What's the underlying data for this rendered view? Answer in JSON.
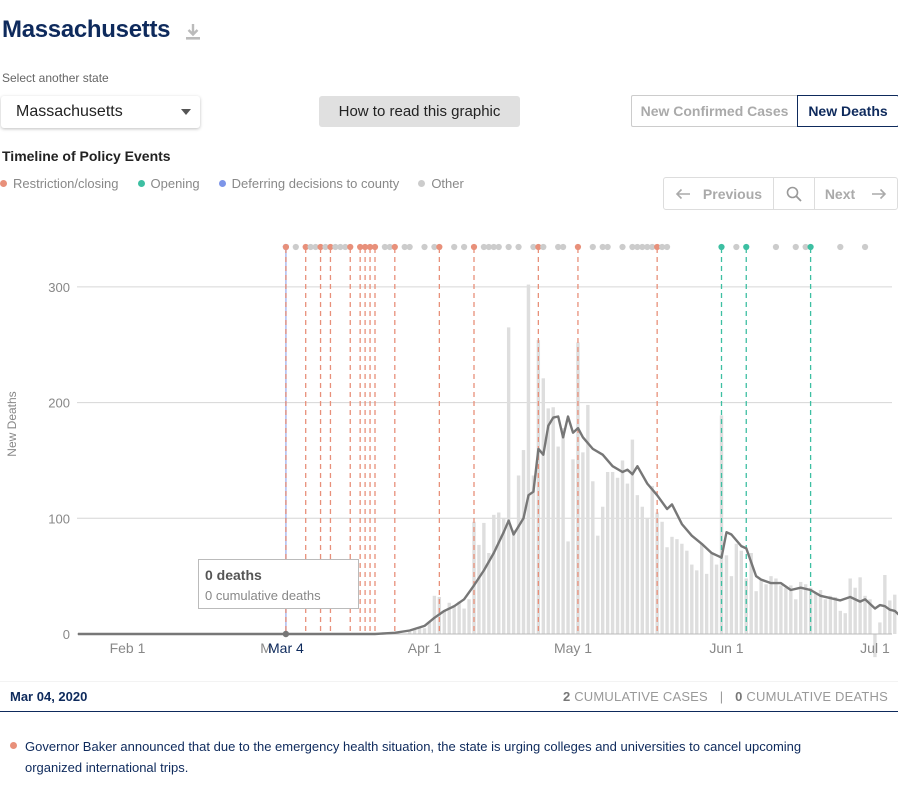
{
  "header": {
    "state_name": "Massachusetts",
    "download_icon": "download-icon"
  },
  "selector": {
    "label": "Select another state",
    "value": "Massachusetts"
  },
  "howto": {
    "label": "How to read this graphic"
  },
  "toggle": {
    "cases_label": "New Confirmed Cases",
    "deaths_label": "New Deaths",
    "selected": "New Deaths"
  },
  "timeline": {
    "title": "Timeline of Policy Events",
    "legend": [
      {
        "label": "Restriction/closing",
        "color": "#e8907a"
      },
      {
        "label": "Opening",
        "color": "#3dbfa2"
      },
      {
        "label": "Deferring decisions to county",
        "color": "#7d95e8"
      },
      {
        "label": "Other",
        "color": "#cccccc"
      }
    ],
    "nav": {
      "prev_label": "Previous",
      "next_label": "Next",
      "search_icon": "search-icon"
    }
  },
  "chart_data": {
    "type": "bar",
    "ylabel": "New Deaths",
    "ylim": [
      0,
      340
    ],
    "yticks": [
      0,
      100,
      200,
      300
    ],
    "x_start": "2020-01-22",
    "xticks": [
      {
        "label": "Feb 1",
        "day": 10
      },
      {
        "label": "M",
        "day": 38
      },
      {
        "label": "Mar 4",
        "day": 42,
        "highlight": true
      },
      {
        "label": "Apr 1",
        "day": 70
      },
      {
        "label": "May 1",
        "day": 100
      },
      {
        "label": "Jun 1",
        "day": 131
      },
      {
        "label": "Jul 1",
        "day": 161
      }
    ],
    "bars": [
      {
        "day": 67,
        "value": 2
      },
      {
        "day": 68,
        "value": 4
      },
      {
        "day": 69,
        "value": 6
      },
      {
        "day": 70,
        "value": 5
      },
      {
        "day": 71,
        "value": 10
      },
      {
        "day": 72,
        "value": 33
      },
      {
        "day": 73,
        "value": 32
      },
      {
        "day": 74,
        "value": 20
      },
      {
        "day": 75,
        "value": 27
      },
      {
        "day": 76,
        "value": 25
      },
      {
        "day": 77,
        "value": 28
      },
      {
        "day": 78,
        "value": 22
      },
      {
        "day": 79,
        "value": 30
      },
      {
        "day": 80,
        "value": 97
      },
      {
        "day": 81,
        "value": 77
      },
      {
        "day": 82,
        "value": 96
      },
      {
        "day": 83,
        "value": 70
      },
      {
        "day": 84,
        "value": 103
      },
      {
        "day": 85,
        "value": 105
      },
      {
        "day": 86,
        "value": 100
      },
      {
        "day": 87,
        "value": 265
      },
      {
        "day": 88,
        "value": 90
      },
      {
        "day": 89,
        "value": 137
      },
      {
        "day": 90,
        "value": 159
      },
      {
        "day": 91,
        "value": 302
      },
      {
        "day": 92,
        "value": 137
      },
      {
        "day": 93,
        "value": 254
      },
      {
        "day": 94,
        "value": 221
      },
      {
        "day": 95,
        "value": 195
      },
      {
        "day": 96,
        "value": 196
      },
      {
        "day": 97,
        "value": 162
      },
      {
        "day": 98,
        "value": 178
      },
      {
        "day": 99,
        "value": 80
      },
      {
        "day": 100,
        "value": 151
      },
      {
        "day": 101,
        "value": 252
      },
      {
        "day": 102,
        "value": 157
      },
      {
        "day": 103,
        "value": 198
      },
      {
        "day": 104,
        "value": 132
      },
      {
        "day": 105,
        "value": 85
      },
      {
        "day": 106,
        "value": 110
      },
      {
        "day": 107,
        "value": 140
      },
      {
        "day": 108,
        "value": 140
      },
      {
        "day": 109,
        "value": 135
      },
      {
        "day": 110,
        "value": 150
      },
      {
        "day": 111,
        "value": 130
      },
      {
        "day": 112,
        "value": 168
      },
      {
        "day": 113,
        "value": 120
      },
      {
        "day": 114,
        "value": 110
      },
      {
        "day": 115,
        "value": 100
      },
      {
        "day": 116,
        "value": 128
      },
      {
        "day": 117,
        "value": 105
      },
      {
        "day": 118,
        "value": 97
      },
      {
        "day": 119,
        "value": 75
      },
      {
        "day": 120,
        "value": 84
      },
      {
        "day": 121,
        "value": 82
      },
      {
        "day": 122,
        "value": 78
      },
      {
        "day": 123,
        "value": 72
      },
      {
        "day": 124,
        "value": 60
      },
      {
        "day": 125,
        "value": 55
      },
      {
        "day": 126,
        "value": 78
      },
      {
        "day": 127,
        "value": 52
      },
      {
        "day": 128,
        "value": 70
      },
      {
        "day": 129,
        "value": 60
      },
      {
        "day": 130,
        "value": 189
      },
      {
        "day": 131,
        "value": 68
      },
      {
        "day": 132,
        "value": 50
      },
      {
        "day": 133,
        "value": 78
      },
      {
        "day": 134,
        "value": 72
      },
      {
        "day": 135,
        "value": 48
      },
      {
        "day": 136,
        "value": 70
      },
      {
        "day": 137,
        "value": 37
      },
      {
        "day": 138,
        "value": 47
      },
      {
        "day": 139,
        "value": 43
      },
      {
        "day": 140,
        "value": 50
      },
      {
        "day": 141,
        "value": 48
      },
      {
        "day": 142,
        "value": 42
      },
      {
        "day": 143,
        "value": 40
      },
      {
        "day": 144,
        "value": 42
      },
      {
        "day": 145,
        "value": 30
      },
      {
        "day": 146,
        "value": 45
      },
      {
        "day": 147,
        "value": 43
      },
      {
        "day": 148,
        "value": 40
      },
      {
        "day": 149,
        "value": 36
      },
      {
        "day": 150,
        "value": 38
      },
      {
        "day": 151,
        "value": 30
      },
      {
        "day": 152,
        "value": 33
      },
      {
        "day": 153,
        "value": 32
      },
      {
        "day": 154,
        "value": 20
      },
      {
        "day": 155,
        "value": 18
      },
      {
        "day": 156,
        "value": 48
      },
      {
        "day": 157,
        "value": 40
      },
      {
        "day": 158,
        "value": 49
      },
      {
        "day": 159,
        "value": 33
      },
      {
        "day": 160,
        "value": 30
      },
      {
        "day": 161,
        "value": -20
      },
      {
        "day": 162,
        "value": 10
      },
      {
        "day": 163,
        "value": 51
      },
      {
        "day": 164,
        "value": 29
      },
      {
        "day": 165,
        "value": 34
      },
      {
        "day": 166,
        "value": 20
      },
      {
        "day": 167,
        "value": 18
      },
      {
        "day": 168,
        "value": 21
      },
      {
        "day": 169,
        "value": 27
      },
      {
        "day": 170,
        "value": 26
      }
    ],
    "average": [
      {
        "day": 0,
        "value": 0
      },
      {
        "day": 60,
        "value": 0
      },
      {
        "day": 64,
        "value": 1
      },
      {
        "day": 67,
        "value": 3
      },
      {
        "day": 70,
        "value": 7
      },
      {
        "day": 72,
        "value": 14
      },
      {
        "day": 74,
        "value": 20
      },
      {
        "day": 76,
        "value": 24
      },
      {
        "day": 78,
        "value": 30
      },
      {
        "day": 80,
        "value": 42
      },
      {
        "day": 82,
        "value": 55
      },
      {
        "day": 84,
        "value": 70
      },
      {
        "day": 86,
        "value": 88
      },
      {
        "day": 87,
        "value": 98
      },
      {
        "day": 88,
        "value": 86
      },
      {
        "day": 90,
        "value": 100
      },
      {
        "day": 91,
        "value": 120
      },
      {
        "day": 92,
        "value": 123
      },
      {
        "day": 93,
        "value": 160
      },
      {
        "day": 94,
        "value": 155
      },
      {
        "day": 95,
        "value": 180
      },
      {
        "day": 96,
        "value": 187
      },
      {
        "day": 97,
        "value": 188
      },
      {
        "day": 98,
        "value": 170
      },
      {
        "day": 99,
        "value": 188
      },
      {
        "day": 100,
        "value": 174
      },
      {
        "day": 101,
        "value": 178
      },
      {
        "day": 102,
        "value": 170
      },
      {
        "day": 104,
        "value": 160
      },
      {
        "day": 106,
        "value": 155
      },
      {
        "day": 108,
        "value": 145
      },
      {
        "day": 110,
        "value": 140
      },
      {
        "day": 111,
        "value": 142
      },
      {
        "day": 112,
        "value": 138
      },
      {
        "day": 113,
        "value": 145
      },
      {
        "day": 115,
        "value": 130
      },
      {
        "day": 117,
        "value": 120
      },
      {
        "day": 119,
        "value": 108
      },
      {
        "day": 120,
        "value": 112
      },
      {
        "day": 122,
        "value": 95
      },
      {
        "day": 124,
        "value": 85
      },
      {
        "day": 126,
        "value": 78
      },
      {
        "day": 128,
        "value": 70
      },
      {
        "day": 129,
        "value": 68
      },
      {
        "day": 130,
        "value": 66
      },
      {
        "day": 131,
        "value": 88
      },
      {
        "day": 132,
        "value": 86
      },
      {
        "day": 134,
        "value": 76
      },
      {
        "day": 135,
        "value": 74
      },
      {
        "day": 136,
        "value": 62
      },
      {
        "day": 137,
        "value": 50
      },
      {
        "day": 138,
        "value": 47
      },
      {
        "day": 140,
        "value": 44
      },
      {
        "day": 142,
        "value": 44
      },
      {
        "day": 144,
        "value": 38
      },
      {
        "day": 146,
        "value": 40
      },
      {
        "day": 148,
        "value": 38
      },
      {
        "day": 150,
        "value": 33
      },
      {
        "day": 152,
        "value": 31
      },
      {
        "day": 154,
        "value": 29
      },
      {
        "day": 156,
        "value": 32
      },
      {
        "day": 158,
        "value": 28
      },
      {
        "day": 159,
        "value": 30
      },
      {
        "day": 160,
        "value": 26
      },
      {
        "day": 161,
        "value": 22
      },
      {
        "day": 162,
        "value": 25
      },
      {
        "day": 163,
        "value": 24
      },
      {
        "day": 164,
        "value": 21
      },
      {
        "day": 165,
        "value": 20
      },
      {
        "day": 166,
        "value": 16
      },
      {
        "day": 167,
        "value": 17
      },
      {
        "day": 168,
        "value": 20
      },
      {
        "day": 169,
        "value": 24
      },
      {
        "day": 170,
        "value": 20
      }
    ],
    "events": [
      {
        "day": 42,
        "type": "county"
      },
      {
        "day": 42,
        "type": "restriction"
      },
      {
        "day": 44,
        "type": "other"
      },
      {
        "day": 46,
        "type": "restriction"
      },
      {
        "day": 47,
        "type": "other"
      },
      {
        "day": 48,
        "type": "other"
      },
      {
        "day": 49,
        "type": "restriction"
      },
      {
        "day": 50,
        "type": "other"
      },
      {
        "day": 51,
        "type": "restriction"
      },
      {
        "day": 52,
        "type": "other"
      },
      {
        "day": 53,
        "type": "other"
      },
      {
        "day": 54,
        "type": "other"
      },
      {
        "day": 55,
        "type": "restriction"
      },
      {
        "day": 57,
        "type": "restriction"
      },
      {
        "day": 58,
        "type": "restriction"
      },
      {
        "day": 59,
        "type": "restriction"
      },
      {
        "day": 60,
        "type": "restriction"
      },
      {
        "day": 62,
        "type": "other"
      },
      {
        "day": 63,
        "type": "other"
      },
      {
        "day": 64,
        "type": "restriction"
      },
      {
        "day": 66,
        "type": "other"
      },
      {
        "day": 67,
        "type": "other"
      },
      {
        "day": 70,
        "type": "other"
      },
      {
        "day": 72,
        "type": "other"
      },
      {
        "day": 73,
        "type": "restriction"
      },
      {
        "day": 76,
        "type": "other"
      },
      {
        "day": 78,
        "type": "other"
      },
      {
        "day": 80,
        "type": "restriction"
      },
      {
        "day": 82,
        "type": "other"
      },
      {
        "day": 83,
        "type": "other"
      },
      {
        "day": 84,
        "type": "other"
      },
      {
        "day": 85,
        "type": "other"
      },
      {
        "day": 87,
        "type": "other"
      },
      {
        "day": 89,
        "type": "other"
      },
      {
        "day": 92,
        "type": "other"
      },
      {
        "day": 93,
        "type": "restriction"
      },
      {
        "day": 94,
        "type": "other"
      },
      {
        "day": 97,
        "type": "other"
      },
      {
        "day": 98,
        "type": "other"
      },
      {
        "day": 101,
        "type": "restriction"
      },
      {
        "day": 104,
        "type": "other"
      },
      {
        "day": 106,
        "type": "other"
      },
      {
        "day": 107,
        "type": "other"
      },
      {
        "day": 110,
        "type": "other"
      },
      {
        "day": 112,
        "type": "other"
      },
      {
        "day": 113,
        "type": "other"
      },
      {
        "day": 114,
        "type": "other"
      },
      {
        "day": 115,
        "type": "other"
      },
      {
        "day": 116,
        "type": "other"
      },
      {
        "day": 117,
        "type": "restriction"
      },
      {
        "day": 118,
        "type": "other"
      },
      {
        "day": 119,
        "type": "other"
      },
      {
        "day": 130,
        "type": "opening"
      },
      {
        "day": 133,
        "type": "other"
      },
      {
        "day": 135,
        "type": "opening"
      },
      {
        "day": 141,
        "type": "other"
      },
      {
        "day": 145,
        "type": "other"
      },
      {
        "day": 147,
        "type": "other"
      },
      {
        "day": 148,
        "type": "opening"
      },
      {
        "day": 154,
        "type": "other"
      },
      {
        "day": 159,
        "type": "other"
      }
    ],
    "selected_day": 42
  },
  "tooltip": {
    "main": "0 deaths",
    "sub": "0 cumulative deaths"
  },
  "footer": {
    "date": "Mar 04, 2020",
    "cases_count": "2",
    "cases_label": "CUMULATIVE CASES",
    "separator": "|",
    "deaths_count": "0",
    "deaths_label": "CUMULATIVE DEATHS"
  },
  "event_note": {
    "text": "Governor Baker announced that due to the emergency health situation, the state is urging colleges and universities to cancel upcoming organized international trips.",
    "color": "#e8907a"
  }
}
